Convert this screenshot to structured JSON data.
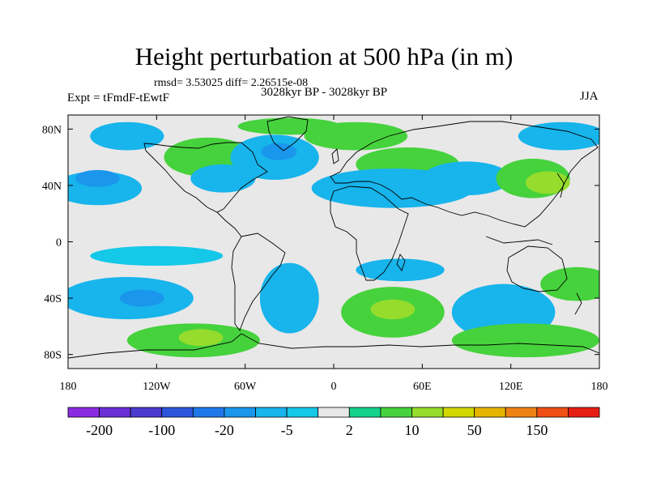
{
  "chart_data": {
    "type": "heatmap",
    "title": "Height perturbation at 500 hPa (in m)",
    "stats_text": "rmsd= 3.53025 diff= 2.26515e-08",
    "period": "3028kyr BP - 3028kyr BP",
    "experiment": "Expt = tFmdF-tEwtF",
    "season": "JJA",
    "lon_range": [
      -180,
      180
    ],
    "lat_range": [
      -90,
      90
    ],
    "x_ticks": [
      {
        "value": -180,
        "label": "180"
      },
      {
        "value": -120,
        "label": "120W"
      },
      {
        "value": -60,
        "label": "60W"
      },
      {
        "value": 0,
        "label": "0"
      },
      {
        "value": 60,
        "label": "60E"
      },
      {
        "value": 120,
        "label": "120E"
      },
      {
        "value": 180,
        "label": "180"
      }
    ],
    "y_ticks": [
      {
        "value": 80,
        "label": "80N"
      },
      {
        "value": 40,
        "label": "40N"
      },
      {
        "value": 0,
        "label": "0"
      },
      {
        "value": -40,
        "label": "40S"
      },
      {
        "value": -80,
        "label": "80S"
      }
    ],
    "colorbar": {
      "levels": [
        -200,
        -150,
        -100,
        -50,
        -20,
        -10,
        -5,
        -2,
        2,
        5,
        10,
        20,
        50,
        100,
        150,
        200
      ],
      "labels": [
        "-200",
        "-100",
        "-20",
        "-5",
        "2",
        "10",
        "50",
        "150"
      ],
      "colors": [
        "#8a2be2",
        "#6a2fd6",
        "#4a3ad0",
        "#2d55dc",
        "#1f78e8",
        "#1a96ec",
        "#18b4ec",
        "#14c8e8",
        "#e8e8e8",
        "#14d28c",
        "#46d23c",
        "#96dc2d",
        "#d2d700",
        "#e6b400",
        "#f08214",
        "#f05014",
        "#e61e14"
      ]
    },
    "anomalies": [
      {
        "lon": -160,
        "lat": 38,
        "rx": 30,
        "ry": 12,
        "value": -8
      },
      {
        "lon": -160,
        "lat": 45,
        "rx": 15,
        "ry": 6,
        "value": -20
      },
      {
        "lon": -140,
        "lat": 75,
        "rx": 25,
        "ry": 10,
        "value": -6
      },
      {
        "lon": -85,
        "lat": 60,
        "rx": 30,
        "ry": 14,
        "value": 6
      },
      {
        "lon": -75,
        "lat": 45,
        "rx": 22,
        "ry": 10,
        "value": -7
      },
      {
        "lon": -40,
        "lat": 60,
        "rx": 30,
        "ry": 16,
        "value": -8
      },
      {
        "lon": -37,
        "lat": 64,
        "rx": 12,
        "ry": 6,
        "value": -20
      },
      {
        "lon": -30,
        "lat": 82,
        "rx": 35,
        "ry": 6,
        "value": 5
      },
      {
        "lon": 15,
        "lat": 75,
        "rx": 35,
        "ry": 10,
        "value": 7
      },
      {
        "lon": 50,
        "lat": 55,
        "rx": 35,
        "ry": 12,
        "value": 6
      },
      {
        "lon": 40,
        "lat": 38,
        "rx": 55,
        "ry": 14,
        "value": -6
      },
      {
        "lon": 90,
        "lat": 45,
        "rx": 30,
        "ry": 12,
        "value": -8
      },
      {
        "lon": 135,
        "lat": 45,
        "rx": 25,
        "ry": 14,
        "value": 8
      },
      {
        "lon": 145,
        "lat": 42,
        "rx": 15,
        "ry": 8,
        "value": 15
      },
      {
        "lon": 155,
        "lat": 75,
        "rx": 30,
        "ry": 10,
        "value": -8
      },
      {
        "lon": -140,
        "lat": -40,
        "rx": 45,
        "ry": 15,
        "value": -8
      },
      {
        "lon": -130,
        "lat": -40,
        "rx": 15,
        "ry": 6,
        "value": -20
      },
      {
        "lon": -95,
        "lat": -70,
        "rx": 45,
        "ry": 12,
        "value": 8
      },
      {
        "lon": -90,
        "lat": -68,
        "rx": 15,
        "ry": 6,
        "value": 15
      },
      {
        "lon": -30,
        "lat": -40,
        "rx": 20,
        "ry": 25,
        "value": -6
      },
      {
        "lon": 40,
        "lat": -50,
        "rx": 35,
        "ry": 18,
        "value": 8
      },
      {
        "lon": 40,
        "lat": -48,
        "rx": 15,
        "ry": 7,
        "value": 15
      },
      {
        "lon": 45,
        "lat": -20,
        "rx": 30,
        "ry": 8,
        "value": -6
      },
      {
        "lon": 115,
        "lat": -50,
        "rx": 35,
        "ry": 20,
        "value": -8
      },
      {
        "lon": 130,
        "lat": -70,
        "rx": 50,
        "ry": 12,
        "value": 7
      },
      {
        "lon": 165,
        "lat": -30,
        "rx": 25,
        "ry": 12,
        "value": 6
      },
      {
        "lon": -120,
        "lat": -10,
        "rx": 45,
        "ry": 7,
        "value": -5
      }
    ]
  }
}
